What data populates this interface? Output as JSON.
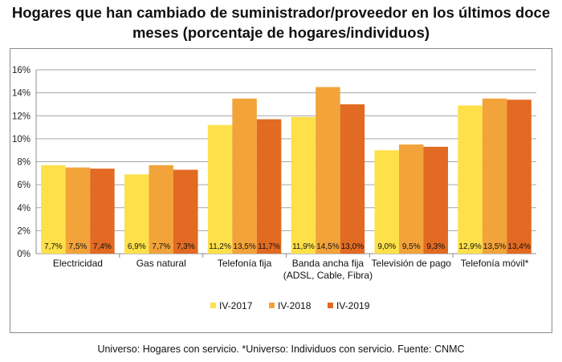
{
  "title_line1": "Hogares que han cambiado de suministrador/proveedor en los últimos doce",
  "title_line2": "meses (porcentaje de hogares/individuos)",
  "footer": "Universo: Hogares con servicio. *Universo: Individuos con servicio. Fuente: CNMC",
  "colors": {
    "IV-2017": "#fde04a",
    "IV-2018": "#f2a33a",
    "IV-2019": "#e26a22"
  },
  "chart_data": {
    "type": "bar",
    "categories": [
      [
        "Electricidad"
      ],
      [
        "Gas natural"
      ],
      [
        "Telefonía fija"
      ],
      [
        "Banda ancha fija",
        "(ADSL, Cable, Fibra)"
      ],
      [
        "Televisión de pago"
      ],
      [
        "Telefonía móvil*"
      ]
    ],
    "series": [
      {
        "name": "IV-2017",
        "values": [
          7.7,
          6.9,
          11.2,
          11.9,
          9.0,
          12.9
        ],
        "labels": [
          "7,7%",
          "6,9%",
          "11,2%",
          "11,9%",
          "9,0%",
          "12,9%"
        ]
      },
      {
        "name": "IV-2018",
        "values": [
          7.5,
          7.7,
          13.5,
          14.5,
          9.5,
          13.5
        ],
        "labels": [
          "7,5%",
          "7,7%",
          "13,5%",
          "14,5%",
          "9,5%",
          "13,5%"
        ]
      },
      {
        "name": "IV-2019",
        "values": [
          7.4,
          7.3,
          11.7,
          13.0,
          9.3,
          13.4
        ],
        "labels": [
          "7,4%",
          "7,3%",
          "11,7%",
          "13,0%",
          "9,3%",
          "13,4%"
        ]
      }
    ],
    "ylim": [
      0,
      16
    ],
    "yticks": [
      "0%",
      "2%",
      "4%",
      "6%",
      "8%",
      "10%",
      "12%",
      "14%",
      "16%"
    ],
    "grid": true,
    "legend": "bottom"
  }
}
